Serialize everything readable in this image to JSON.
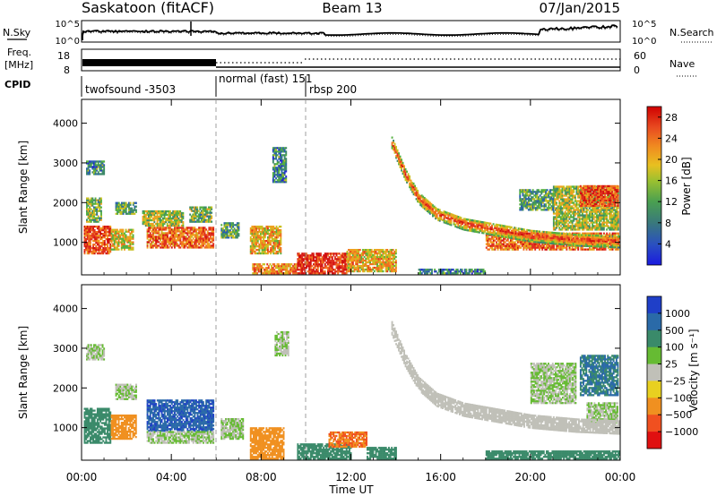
{
  "header": {
    "station": "Saskatoon (fitACF)",
    "beam": "Beam 13",
    "date": "07/Jan/2015"
  },
  "noise_panel": {
    "left_label": "N.Sky",
    "right_label": "N.Search",
    "left_ticks": [
      "10^5",
      "10^0"
    ],
    "right_ticks": [
      "10^5",
      "10^0"
    ]
  },
  "freq_panel": {
    "left_label_1": "Freq.",
    "left_label_2": "[MHz]",
    "right_label": "Nave",
    "left_ticks": [
      "18",
      "8"
    ],
    "right_ticks": [
      "60",
      "0"
    ]
  },
  "cpid_panel": {
    "label": "CPID",
    "segments": [
      {
        "name": "twofsound -3503",
        "start_hour": 0
      },
      {
        "name": "normal (fast) 151",
        "start_hour": 6
      },
      {
        "name": "rbsp 200",
        "start_hour": 10
      }
    ]
  },
  "power_panel": {
    "ylabel": "Slant Range [km]",
    "yticks": [
      "4000",
      "3000",
      "2000",
      "1000"
    ],
    "colorbar_label": "Power [dB]",
    "colorbar_ticks": [
      "28",
      "24",
      "20",
      "16",
      "12",
      "8",
      "4"
    ],
    "colors": [
      "#1f1fd6",
      "#2a5fb0",
      "#3f8a6a",
      "#55b040",
      "#c8c020",
      "#f0a020",
      "#f07020",
      "#e03020",
      "#d01010"
    ]
  },
  "velocity_panel": {
    "ylabel": "Slant Range [km]",
    "yticks": [
      "4000",
      "3000",
      "2000",
      "1000"
    ],
    "colorbar_label": "Velocity [m s⁻¹]",
    "colorbar_ticks": [
      "1000",
      "500",
      "100",
      "25",
      "−25",
      "−100",
      "−500",
      "−1000"
    ],
    "colors": [
      "#1f3fc8",
      "#2a6aa8",
      "#3a8a6a",
      "#66bb33",
      "#c0c0b8",
      "#e8d020",
      "#f09020",
      "#f05020",
      "#e01010"
    ]
  },
  "x_axis": {
    "ticks": [
      "00:00",
      "04:00",
      "08:00",
      "12:00",
      "16:00",
      "20:00",
      "00:00"
    ],
    "label": "Time UT"
  },
  "chart_data": {
    "type": "heatmap",
    "title": "Saskatoon (fitACF)",
    "subtitle": "Beam 13 — 07/Jan/2015",
    "xlabel": "Time UT",
    "ylabel": "Slant Range [km]",
    "xlim": [
      0,
      24
    ],
    "ylim": [
      180,
      4600
    ],
    "mode_changes_hours": [
      6,
      10
    ],
    "power_range_db": [
      0,
      30
    ],
    "velocity_range_ms": [
      -1000,
      1000
    ],
    "power_regions": [
      {
        "t0": 0.1,
        "t1": 1.3,
        "r0": 700,
        "r1": 1400,
        "value": 24
      },
      {
        "t0": 0.2,
        "t1": 0.9,
        "r0": 1500,
        "r1": 2100,
        "value": 12
      },
      {
        "t0": 0.2,
        "t1": 1.0,
        "r0": 2700,
        "r1": 3050,
        "value": 8
      },
      {
        "t0": 1.3,
        "t1": 2.3,
        "r0": 800,
        "r1": 1300,
        "value": 16
      },
      {
        "t0": 1.5,
        "t1": 2.4,
        "r0": 1700,
        "r1": 2000,
        "value": 10
      },
      {
        "t0": 2.9,
        "t1": 5.9,
        "r0": 850,
        "r1": 1350,
        "value": 22
      },
      {
        "t0": 2.7,
        "t1": 4.5,
        "r0": 1400,
        "r1": 1800,
        "value": 14
      },
      {
        "t0": 4.8,
        "t1": 5.8,
        "r0": 1500,
        "r1": 1900,
        "value": 12
      },
      {
        "t0": 6.2,
        "t1": 7.0,
        "r0": 1100,
        "r1": 1500,
        "value": 10
      },
      {
        "t0": 7.5,
        "t1": 8.9,
        "r0": 700,
        "r1": 1400,
        "value": 18
      },
      {
        "t0": 8.5,
        "t1": 9.1,
        "r0": 2500,
        "r1": 3400,
        "value": 8
      },
      {
        "t0": 7.6,
        "t1": 9.6,
        "r0": 200,
        "r1": 450,
        "value": 20
      },
      {
        "t0": 9.6,
        "t1": 11.8,
        "r0": 200,
        "r1": 700,
        "value": 26
      },
      {
        "t0": 11.8,
        "t1": 14.0,
        "r0": 250,
        "r1": 800,
        "value": 18
      },
      {
        "t0": 15.0,
        "t1": 18.0,
        "r0": 200,
        "r1": 300,
        "value": 8
      },
      {
        "t0": 18.0,
        "t1": 23.9,
        "r0": 800,
        "r1": 1250,
        "value": 22
      },
      {
        "t0": 21.0,
        "t1": 23.9,
        "r0": 1300,
        "r1": 2400,
        "value": 14
      },
      {
        "t0": 22.2,
        "t1": 23.9,
        "r0": 1900,
        "r1": 2400,
        "value": 24
      },
      {
        "t0": 19.5,
        "t1": 21.0,
        "r0": 1800,
        "r1": 2300,
        "value": 10
      }
    ],
    "power_band": {
      "description": "descending echo band",
      "points": [
        [
          13.8,
          3500
        ],
        [
          14.4,
          2700
        ],
        [
          15.0,
          2100
        ],
        [
          15.8,
          1700
        ],
        [
          17.0,
          1450
        ],
        [
          18.5,
          1300
        ],
        [
          20.0,
          1150
        ],
        [
          22.0,
          1050
        ],
        [
          24.0,
          1000
        ]
      ],
      "width_km": 300,
      "value": 20
    },
    "velocity_regions": [
      {
        "t0": 0.1,
        "t1": 1.3,
        "r0": 600,
        "r1": 1500,
        "value": 100
      },
      {
        "t0": 0.2,
        "t1": 1.0,
        "r0": 2700,
        "r1": 3100,
        "value": 25
      },
      {
        "t0": 1.3,
        "t1": 2.4,
        "r0": 700,
        "r1": 1300,
        "value": -100
      },
      {
        "t0": 1.5,
        "t1": 2.4,
        "r0": 1700,
        "r1": 2100,
        "value": 25
      },
      {
        "t0": 2.9,
        "t1": 5.9,
        "r0": 900,
        "r1": 1700,
        "value": 600
      },
      {
        "t0": 2.9,
        "t1": 5.9,
        "r0": 600,
        "r1": 900,
        "value": 25
      },
      {
        "t0": 6.2,
        "t1": 7.2,
        "r0": 700,
        "r1": 1200,
        "value": 25
      },
      {
        "t0": 7.5,
        "t1": 9.0,
        "r0": 200,
        "r1": 1000,
        "value": -100
      },
      {
        "t0": 8.6,
        "t1": 9.2,
        "r0": 2800,
        "r1": 3400,
        "value": 25
      },
      {
        "t0": 9.6,
        "t1": 12.0,
        "r0": 200,
        "r1": 600,
        "value": 100
      },
      {
        "t0": 11.0,
        "t1": 12.7,
        "r0": 500,
        "r1": 900,
        "value": -300
      },
      {
        "t0": 12.7,
        "t1": 14.0,
        "r0": 200,
        "r1": 500,
        "value": 100
      },
      {
        "t0": 18.0,
        "t1": 24.0,
        "r0": 200,
        "r1": 400,
        "value": 100
      },
      {
        "t0": 20.0,
        "t1": 22.0,
        "r0": 1600,
        "r1": 2600,
        "value": 25
      },
      {
        "t0": 22.2,
        "t1": 23.9,
        "r0": 1800,
        "r1": 2800,
        "value": 300
      },
      {
        "t0": 22.5,
        "t1": 23.9,
        "r0": 1100,
        "r1": 1600,
        "value": 25
      }
    ],
    "velocity_band": {
      "points": [
        [
          13.8,
          3500
        ],
        [
          14.4,
          2700
        ],
        [
          15.0,
          2100
        ],
        [
          15.8,
          1700
        ],
        [
          17.0,
          1450
        ],
        [
          18.5,
          1300
        ],
        [
          20.0,
          1150
        ],
        [
          22.0,
          1050
        ],
        [
          24.0,
          1000
        ]
      ],
      "width_km": 350,
      "value": 0
    }
  }
}
